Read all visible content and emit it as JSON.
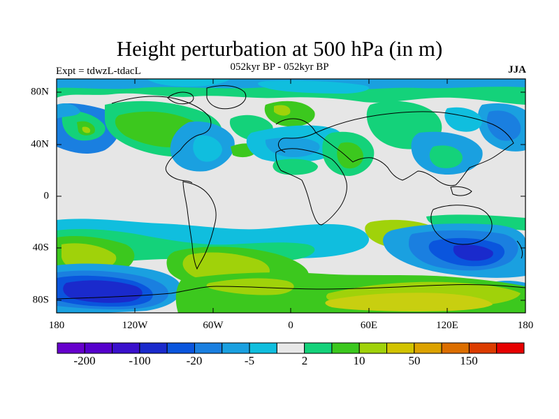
{
  "title": "Height perturbation at 500 hPa (in m)",
  "subtitle": "052kyr BP - 052kyr BP",
  "left_label": "Expt = tdwzL-tdacL",
  "right_label": "JJA",
  "y_ticks": [
    "80N",
    "40N",
    "0",
    "40S",
    "80S"
  ],
  "x_ticks": [
    "180",
    "120W",
    "60W",
    "0",
    "60E",
    "120E",
    "180"
  ],
  "colorbar": {
    "colors": [
      "#6600cc",
      "#5500cc",
      "#3a10cc",
      "#1a2acc",
      "#0a55dd",
      "#1a7fe0",
      "#1aa0e0",
      "#10bede",
      "#e8e8e8",
      "#14d27a",
      "#3cc81e",
      "#a0d20a",
      "#d2c300",
      "#dca200",
      "#dc6e00",
      "#dc3c00",
      "#e60000"
    ],
    "labels": [
      "-200",
      "-100",
      "-20",
      "-5",
      "2",
      "10",
      "50",
      "150"
    ]
  }
}
